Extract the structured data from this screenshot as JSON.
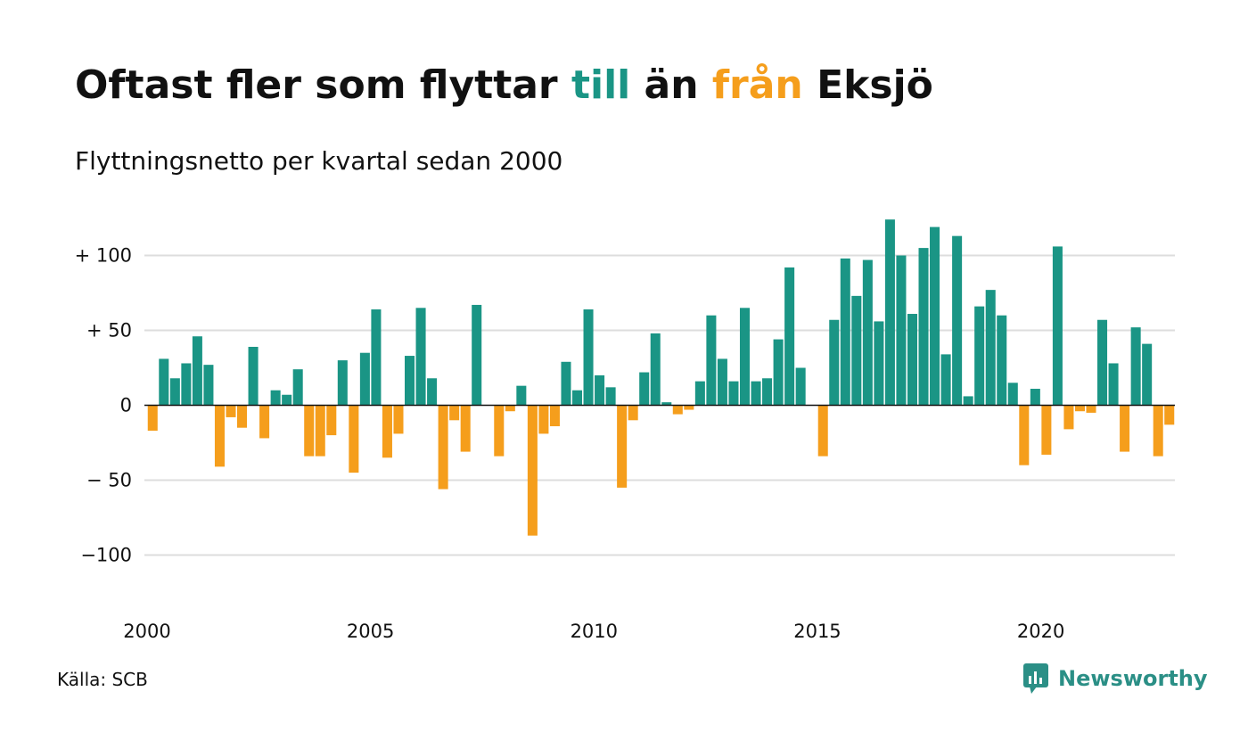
{
  "title": {
    "part1": "Oftast fler som flyttar ",
    "part2": "till",
    "part3": " än ",
    "part4": "från",
    "part5": " Eksjö"
  },
  "subtitle": "Flyttningsnetto per kvartal sedan 2000",
  "source": "Källa: SCB",
  "logo": {
    "text": "Newsworthy",
    "icon": "newsworthy-chart-bubble-icon"
  },
  "colors": {
    "positive": "#1a9585",
    "negative": "#f59e1c",
    "grid": "#dddddd",
    "zero_line": "#111111",
    "logo": "#2b8f86"
  },
  "chart_data": {
    "type": "bar",
    "title": "Oftast fler som flyttar till än från Eksjö",
    "subtitle": "Flyttningsnetto per kvartal sedan 2000",
    "x_start": 2000.0,
    "x_step": 0.25,
    "xlim": [
      2000,
      2023
    ],
    "ylim": [
      -115,
      125
    ],
    "x_ticks": [
      2000,
      2005,
      2010,
      2015,
      2020
    ],
    "y_ticks": [
      100,
      50,
      0,
      -50,
      -100
    ],
    "y_tick_labels": [
      "+ 100",
      "+  50",
      "0",
      "− 50",
      "−100"
    ],
    "grid": true,
    "values": [
      -17,
      31,
      18,
      28,
      46,
      27,
      -41,
      -8,
      -15,
      39,
      -22,
      10,
      7,
      24,
      -34,
      -34,
      -20,
      30,
      -45,
      35,
      64,
      -35,
      -19,
      33,
      65,
      18,
      -56,
      -10,
      -31,
      67,
      0,
      -34,
      -4,
      13,
      -87,
      -19,
      -14,
      29,
      10,
      64,
      20,
      12,
      -55,
      -10,
      22,
      48,
      2,
      -6,
      -3,
      16,
      60,
      31,
      16,
      65,
      16,
      18,
      44,
      92,
      25,
      0,
      -34,
      57,
      98,
      73,
      97,
      56,
      124,
      100,
      61,
      105,
      119,
      34,
      113,
      6,
      66,
      77,
      60,
      15,
      -40,
      11,
      -33,
      106,
      -16,
      -4,
      -5,
      57,
      28,
      -31,
      52,
      41,
      -34,
      -13
    ]
  }
}
